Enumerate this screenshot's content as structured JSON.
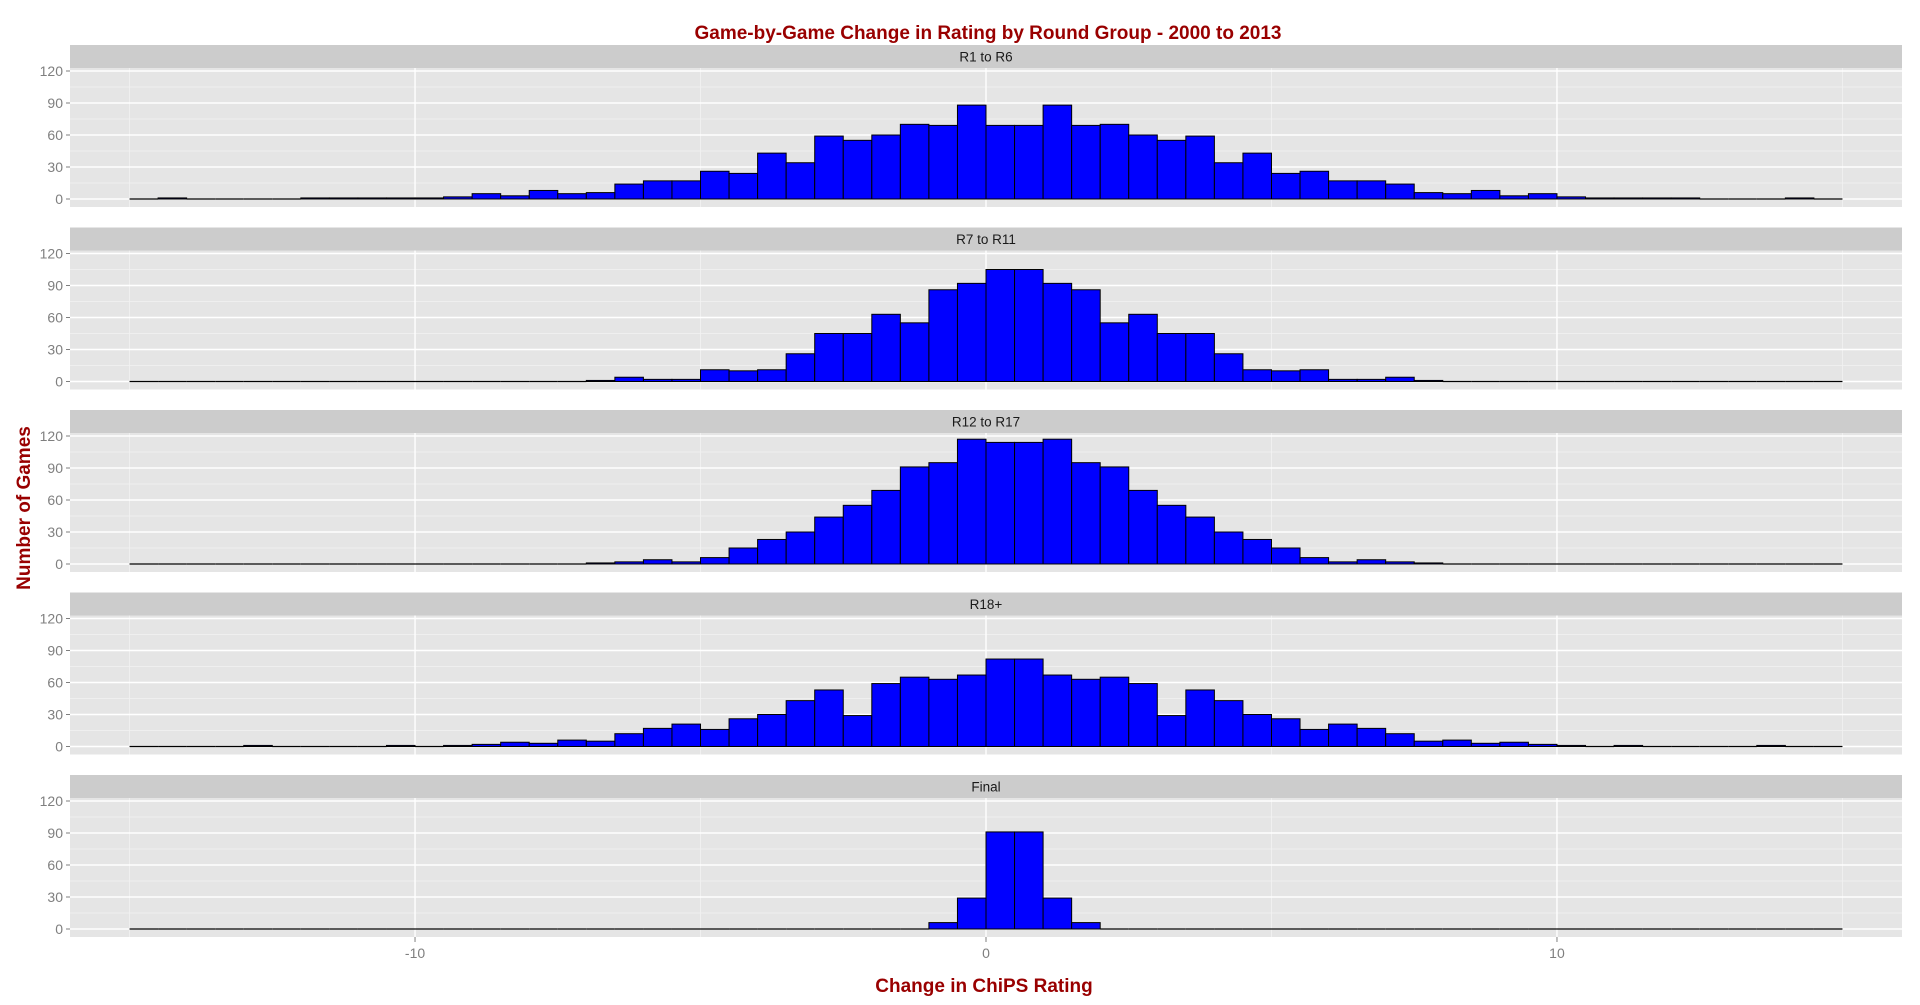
{
  "colors": {
    "title": "#990000",
    "panel_background": "#e5e5e5",
    "strip_background": "#cccccc",
    "bar_fill": "#0000ff",
    "bar_outline": "#000000",
    "grid": "#ffffff",
    "tick_text": "#7f7f7f"
  },
  "chart_data": {
    "type": "bar",
    "title": "Game-by-Game Change in Rating by Round Group - 2000 to 2013",
    "xlabel": "Change in ChiPS Rating",
    "ylabel": "Number of Games",
    "xlim": [
      -15,
      15
    ],
    "ylim": [
      0,
      120
    ],
    "x_ticks": [
      -10,
      0,
      10
    ],
    "x_tick_labels": [
      "-10",
      "0",
      "10"
    ],
    "y_ticks": [
      0,
      30,
      60,
      90,
      120
    ],
    "y_tick_labels": [
      "0",
      "30",
      "60",
      "90",
      "120"
    ],
    "bin_start": -15,
    "bin_width": 0.5,
    "grid": true,
    "panels": [
      {
        "label": "R1 to R6",
        "values": [
          0,
          1,
          0,
          0,
          0,
          0,
          1,
          1,
          1,
          1,
          1,
          2,
          5,
          3,
          8,
          5,
          6,
          14,
          17,
          17,
          26,
          24,
          43,
          34,
          59,
          55,
          60,
          70,
          69,
          88,
          69,
          69,
          88,
          69,
          70,
          60,
          55,
          59,
          34,
          43,
          24,
          26,
          17,
          17,
          14,
          6,
          5,
          8,
          3,
          5,
          2,
          1,
          1,
          1,
          1,
          0,
          0,
          0,
          1,
          0
        ]
      },
      {
        "label": "R7 to R11",
        "values": [
          0,
          0,
          0,
          0,
          0,
          0,
          0,
          0,
          0,
          0,
          0,
          0,
          0,
          0,
          0,
          0,
          1,
          4,
          2,
          2,
          11,
          10,
          11,
          26,
          45,
          45,
          63,
          55,
          86,
          92,
          105,
          105,
          92,
          86,
          55,
          63,
          45,
          45,
          26,
          11,
          10,
          11,
          2,
          2,
          4,
          1,
          0,
          0,
          0,
          0,
          0,
          0,
          0,
          0,
          0,
          0,
          0,
          0,
          0,
          0
        ]
      },
      {
        "label": "R12 to R17",
        "values": [
          0,
          0,
          0,
          0,
          0,
          0,
          0,
          0,
          0,
          0,
          0,
          0,
          0,
          0,
          0,
          0,
          1,
          2,
          4,
          2,
          6,
          15,
          23,
          30,
          44,
          55,
          69,
          91,
          95,
          117,
          114,
          114,
          117,
          95,
          91,
          69,
          55,
          44,
          30,
          23,
          15,
          6,
          2,
          4,
          2,
          1,
          0,
          0,
          0,
          0,
          0,
          0,
          0,
          0,
          0,
          0,
          0,
          0,
          0,
          0
        ]
      },
      {
        "label": "R18+",
        "values": [
          0,
          0,
          0,
          0,
          1,
          0,
          0,
          0,
          0,
          1,
          0,
          1,
          2,
          4,
          3,
          6,
          5,
          12,
          17,
          21,
          16,
          26,
          30,
          43,
          53,
          29,
          59,
          65,
          63,
          67,
          82,
          82,
          67,
          63,
          65,
          59,
          29,
          53,
          43,
          30,
          26,
          16,
          21,
          17,
          12,
          5,
          6,
          3,
          4,
          2,
          1,
          0,
          1,
          0,
          0,
          0,
          0,
          1,
          0,
          0
        ]
      },
      {
        "label": "Final",
        "values": [
          0,
          0,
          0,
          0,
          0,
          0,
          0,
          0,
          0,
          0,
          0,
          0,
          0,
          0,
          0,
          0,
          0,
          0,
          0,
          0,
          0,
          0,
          0,
          0,
          0,
          0,
          0,
          0,
          6,
          29,
          91,
          91,
          29,
          6,
          0,
          0,
          0,
          0,
          0,
          0,
          0,
          0,
          0,
          0,
          0,
          0,
          0,
          0,
          0,
          0,
          0,
          0,
          0,
          0,
          0,
          0,
          0,
          0,
          0,
          0
        ]
      }
    ]
  }
}
